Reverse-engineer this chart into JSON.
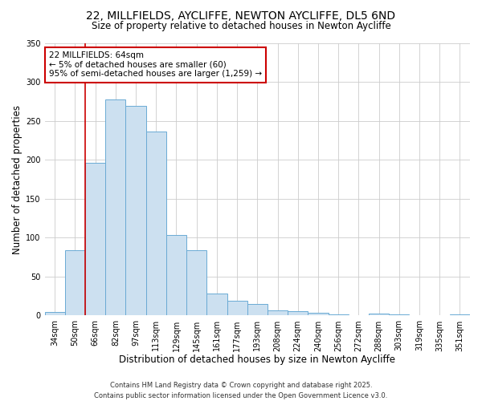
{
  "title": "22, MILLFIELDS, AYCLIFFE, NEWTON AYCLIFFE, DL5 6ND",
  "subtitle": "Size of property relative to detached houses in Newton Aycliffe",
  "xlabel": "Distribution of detached houses by size in Newton Aycliffe",
  "ylabel": "Number of detached properties",
  "bar_color": "#cce0f0",
  "bar_edge_color": "#6aaad4",
  "categories": [
    "34sqm",
    "50sqm",
    "66sqm",
    "82sqm",
    "97sqm",
    "113sqm",
    "129sqm",
    "145sqm",
    "161sqm",
    "177sqm",
    "193sqm",
    "208sqm",
    "224sqm",
    "240sqm",
    "256sqm",
    "272sqm",
    "288sqm",
    "303sqm",
    "319sqm",
    "335sqm",
    "351sqm"
  ],
  "values": [
    5,
    84,
    196,
    278,
    270,
    237,
    104,
    84,
    28,
    19,
    15,
    7,
    6,
    4,
    2,
    0,
    3,
    2,
    1,
    1,
    2
  ],
  "ylim": [
    0,
    350
  ],
  "yticks": [
    0,
    50,
    100,
    150,
    200,
    250,
    300,
    350
  ],
  "vline_color": "#cc0000",
  "annotation_title": "22 MILLFIELDS: 64sqm",
  "annotation_line1": "← 5% of detached houses are smaller (60)",
  "annotation_line2": "95% of semi-detached houses are larger (1,259) →",
  "annotation_box_color": "#cc0000",
  "footer_line1": "Contains HM Land Registry data © Crown copyright and database right 2025.",
  "footer_line2": "Contains public sector information licensed under the Open Government Licence v3.0.",
  "background_color": "#ffffff",
  "plot_background": "#ffffff",
  "grid_color": "#cccccc",
  "title_fontsize": 10,
  "subtitle_fontsize": 8.5,
  "axis_label_fontsize": 8.5,
  "tick_fontsize": 7,
  "footer_fontsize": 6,
  "annotation_fontsize": 7.5
}
